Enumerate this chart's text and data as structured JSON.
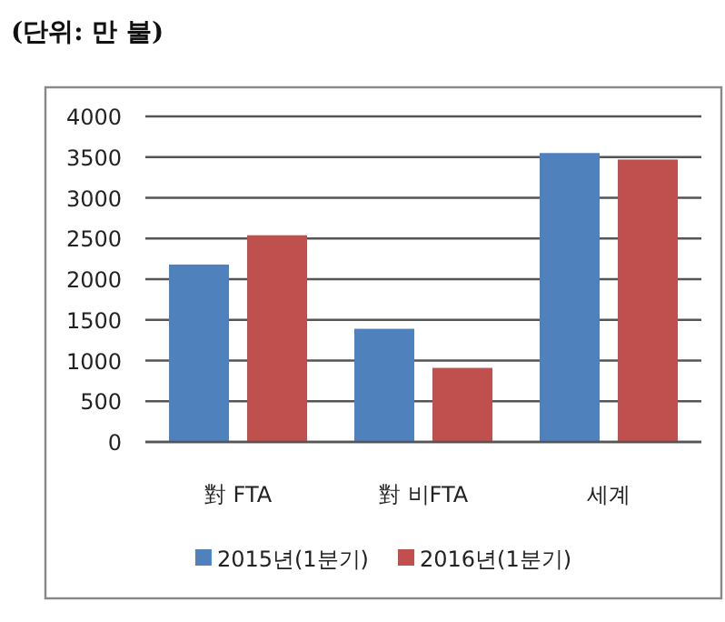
{
  "chart_data": {
    "type": "bar",
    "title": "(단위: 만 불)",
    "categories": [
      "對 FTA",
      "對 비FTA",
      "세계"
    ],
    "series": [
      {
        "name": "2015년(1분기)",
        "color": "#4f81bd",
        "values": [
          2180,
          1390,
          3550
        ]
      },
      {
        "name": "2016년(1분기)",
        "color": "#c0504d",
        "values": [
          2540,
          910,
          3470
        ]
      }
    ],
    "ylim": [
      0,
      4000
    ],
    "yticks": [
      0,
      500,
      1000,
      1500,
      2000,
      2500,
      3000,
      3500,
      4000
    ],
    "grid": "y",
    "legend": "bottom"
  }
}
